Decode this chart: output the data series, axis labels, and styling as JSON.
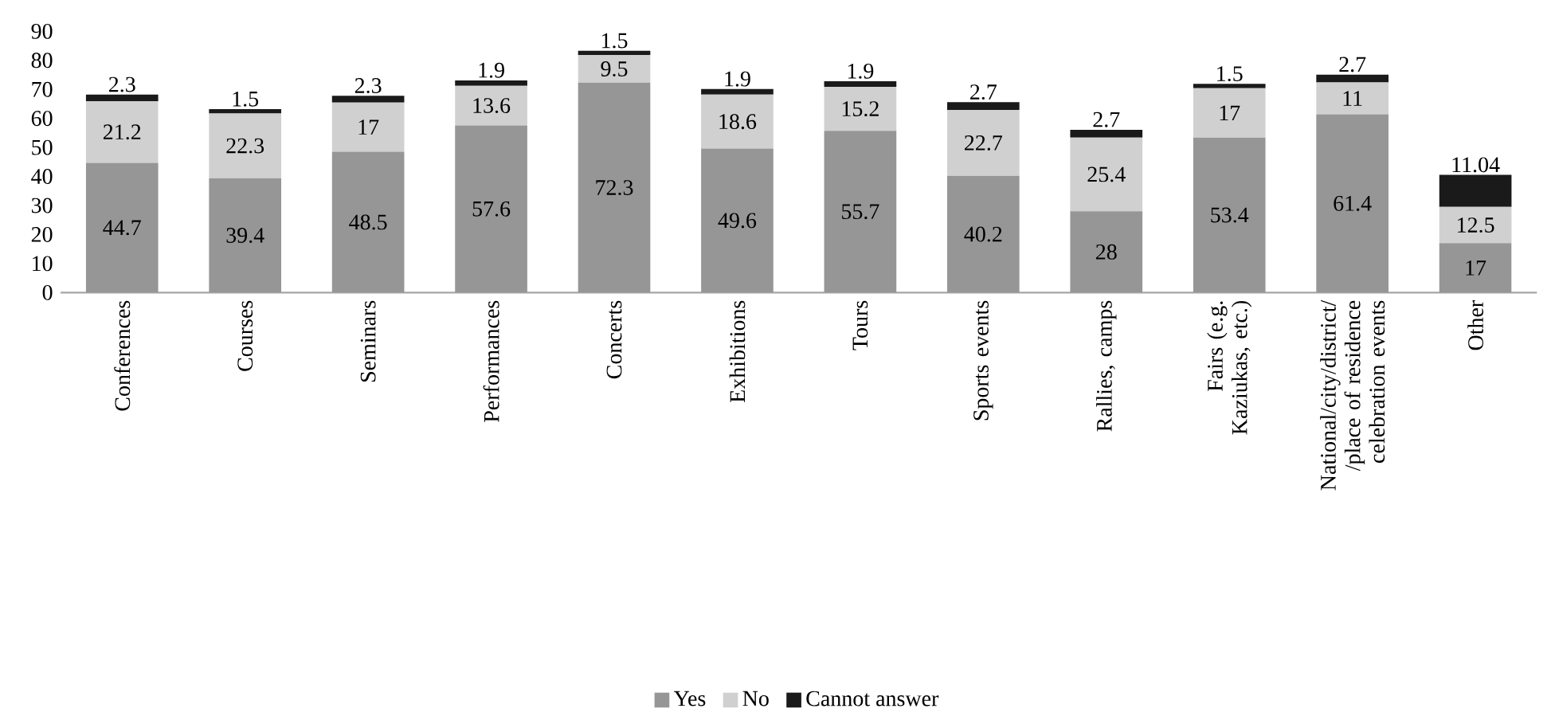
{
  "chart_data": {
    "type": "bar",
    "stacked": true,
    "data_labels": true,
    "legend": "bottom",
    "grid": false,
    "categories": [
      "Conferences",
      "Courses",
      "Seminars",
      "Performances",
      "Concerts",
      "Exhibitions",
      "Tours",
      "Sports events",
      "Rallies, camps",
      "Fairs (e.g. Kaziukas, etc.)",
      "National/city/district/ /place of residence celebration events",
      "Other"
    ],
    "ylim": [
      0,
      90
    ],
    "yticks": [
      0,
      10,
      20,
      30,
      40,
      50,
      60,
      70,
      80,
      90
    ],
    "series": [
      {
        "name": "Yes",
        "color": "#969696",
        "values": [
          44.7,
          39.4,
          48.5,
          57.6,
          72.3,
          49.6,
          55.7,
          40.2,
          28,
          53.4,
          61.4,
          17
        ]
      },
      {
        "name": "No",
        "color": "#d0d0d0",
        "values": [
          21.2,
          22.3,
          17,
          13.6,
          9.5,
          18.6,
          15.2,
          22.7,
          25.4,
          17,
          11,
          12.5
        ]
      },
      {
        "name": "Cannot answer",
        "color": "#1a1a1a",
        "values": [
          2.3,
          1.5,
          2.3,
          1.9,
          1.5,
          1.9,
          1.9,
          2.7,
          2.7,
          1.5,
          2.7,
          11.04
        ]
      }
    ]
  }
}
